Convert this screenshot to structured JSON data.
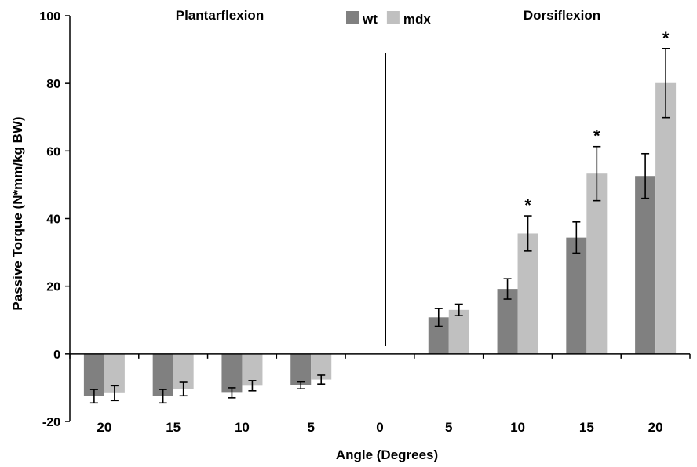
{
  "chart_data": {
    "type": "bar",
    "categories": [
      "20",
      "15",
      "10",
      "5",
      "0",
      "5",
      "10",
      "15",
      "20"
    ],
    "xlabel": "Angle (Degrees)",
    "ylabel": "Passive Torque (N*mm/kg BW)",
    "ylim": [
      -20,
      100
    ],
    "yticks": [
      -20,
      0,
      20,
      40,
      60,
      80,
      100
    ],
    "grid": false,
    "legend_position": "top-center",
    "regions": [
      {
        "label": "Plantarflexion",
        "categories_span": [
          0,
          3
        ]
      },
      {
        "label": "Dorsiflexion",
        "categories_span": [
          5,
          8
        ]
      }
    ],
    "series": [
      {
        "name": "wt",
        "color": "#808080",
        "values": [
          -12.5,
          -12.5,
          -11.5,
          -9.3,
          null,
          10.8,
          19.2,
          34.4,
          52.6
        ],
        "errors": [
          2.0,
          2.0,
          1.5,
          1.0,
          null,
          2.6,
          3.0,
          4.6,
          6.6
        ]
      },
      {
        "name": "mdx",
        "color": "#c0c0c0",
        "values": [
          -11.6,
          -10.4,
          -9.4,
          -7.6,
          null,
          13.0,
          35.6,
          53.3,
          80.1
        ],
        "errors": [
          2.2,
          2.0,
          1.5,
          1.3,
          null,
          1.7,
          5.2,
          8.0,
          10.2
        ]
      }
    ],
    "significance_marker": "*",
    "significant": [
      {
        "category_index": 6,
        "series": "mdx"
      },
      {
        "category_index": 7,
        "series": "mdx"
      },
      {
        "category_index": 8,
        "series": "mdx"
      }
    ]
  }
}
